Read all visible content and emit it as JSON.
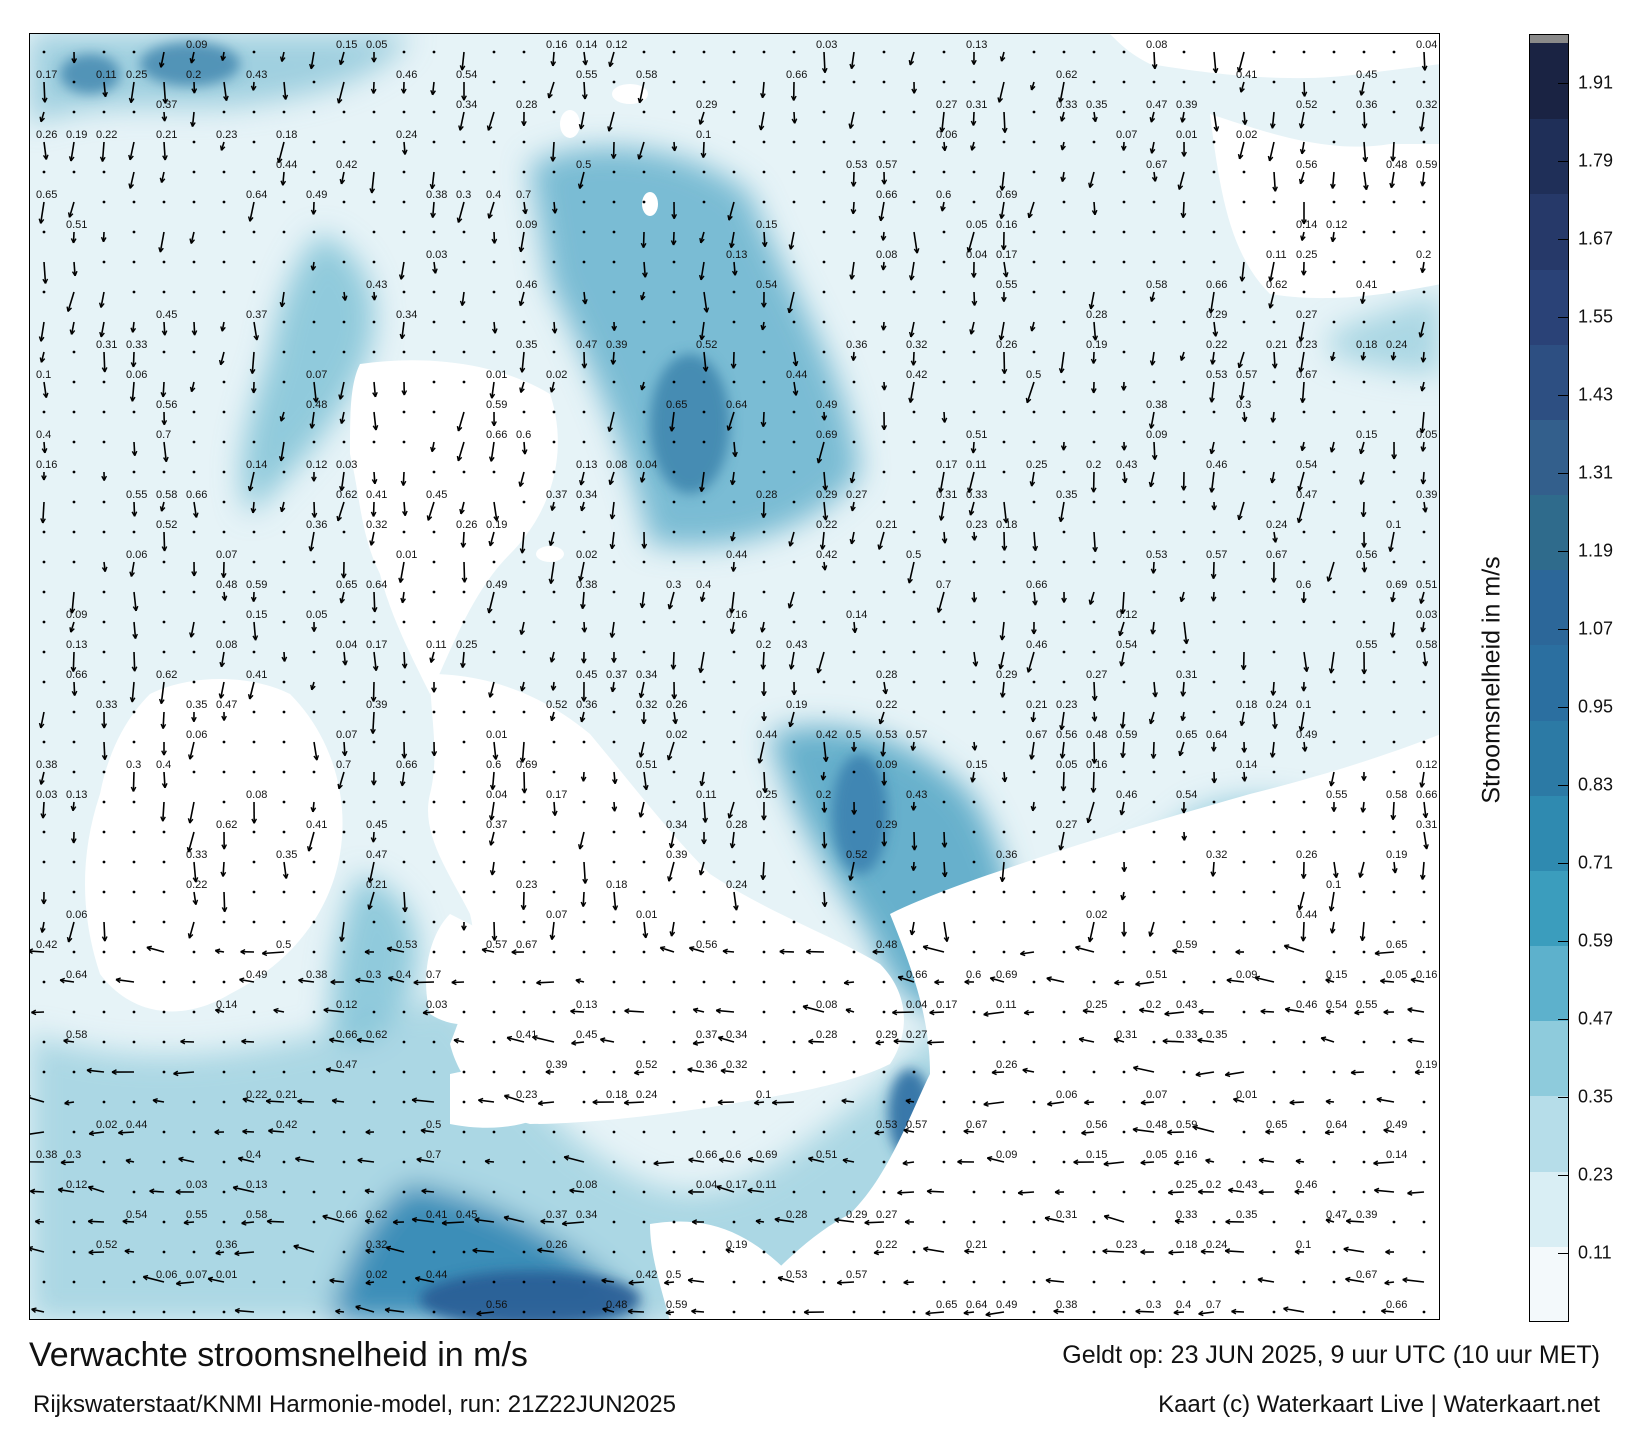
{
  "map": {
    "colors": {
      "land": "#ffffff",
      "water_low": "#e6f3f7",
      "water_mid": "#9ccfde",
      "water_high": "#3b89b1",
      "water_peak": "#2a5d95",
      "arrow": "#000000"
    },
    "cities_labels": [],
    "speed_labels": [
      "0.09",
      "0.15",
      "0.05",
      "0.16",
      "0.14",
      "0.12",
      "0.03",
      "0.13",
      "0.08",
      "0.04",
      "0.17",
      "0.11",
      "0.25",
      "0.2",
      "0.43",
      "0.46",
      "0.54",
      "0.55",
      "0.58",
      "0.66",
      "0.62",
      "0.41",
      "0.45",
      "0.37",
      "0.34",
      "0.28",
      "0.29",
      "0.27",
      "0.31",
      "0.33",
      "0.35",
      "0.47",
      "0.39",
      "0.52",
      "0.36",
      "0.32",
      "0.26",
      "0.19",
      "0.22",
      "0.21",
      "0.23",
      "0.18",
      "0.24",
      "0.1",
      "0.06",
      "0.07",
      "0.01",
      "0.02",
      "0.44",
      "0.42",
      "0.5",
      "0.53",
      "0.57",
      "0.67",
      "0.56",
      "0.48",
      "0.59",
      "0.65",
      "0.64",
      "0.49",
      "0.38",
      "0.3",
      "0.4",
      "0.7",
      "0.66",
      "0.6",
      "0.69",
      "0.51"
    ]
  },
  "colorbar": {
    "title": "Stroomsnelheid in m/s",
    "ticks": [
      "1.91",
      "1.79",
      "1.67",
      "1.55",
      "1.43",
      "1.31",
      "1.19",
      "1.07",
      "0.95",
      "0.83",
      "0.71",
      "0.59",
      "0.47",
      "0.35",
      "0.23",
      "0.11"
    ],
    "colors": [
      "#f3f9fb",
      "#d9eef4",
      "#b6dde9",
      "#8ecbdc",
      "#5db1cc",
      "#3b9dbd",
      "#2f8ab0",
      "#2c7aa5",
      "#2b6fa0",
      "#2c6799",
      "#2f6b8c",
      "#335f8c",
      "#2d4f82",
      "#2a4277",
      "#263969",
      "#1f2f58",
      "#1a2343",
      "#8a8a8a"
    ]
  },
  "footer": {
    "title": "Verwachte stroomsnelheid in m/s",
    "subtitle": "Rijkswaterstaat/KNMI Harmonie-model, run: 21Z22JUN2025",
    "valid": "Geldt op: 23 JUN 2025, 9 uur UTC (10 uur MET)",
    "credit": "Kaart (c) Waterkaart Live | Waterkaart.net"
  }
}
